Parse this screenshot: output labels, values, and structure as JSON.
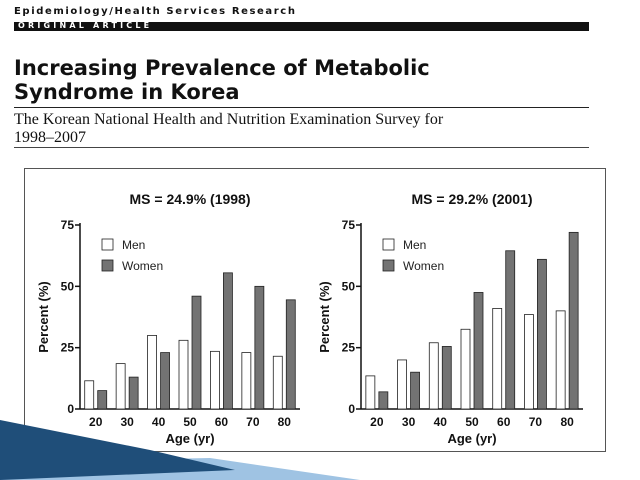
{
  "header": {
    "journal": "Epidemiology/Health Services Research",
    "section": "ORIGINAL ARTICLE",
    "title_line1": "Increasing Prevalence of Metabolic",
    "title_line2": "Syndrome in Korea",
    "subtitle_line1": "The Korean National Health and Nutrition Examination Survey for",
    "subtitle_line2": "1998–2007"
  },
  "colors": {
    "men_fill": "#ffffff",
    "women_fill": "#737373",
    "bar_stroke": "#222222",
    "swoosh_dark": "#1f4e79",
    "swoosh_light": "#9fc3e3"
  },
  "chart_data": [
    {
      "type": "bar",
      "title": "MS = 24.9%  (1998)",
      "xlabel": "Age (yr)",
      "ylabel": "Percent (%)",
      "ylim": [
        0,
        75
      ],
      "yticks": [
        "0",
        "25",
        "50",
        "75"
      ],
      "categories": [
        "20",
        "30",
        "40",
        "50",
        "60",
        "70",
        "80"
      ],
      "legend": "top-left",
      "series": [
        {
          "name": "Men",
          "values": [
            11.5,
            18.5,
            30,
            28,
            23.5,
            23,
            21.5
          ]
        },
        {
          "name": "Women",
          "values": [
            7.5,
            13,
            23,
            46,
            55.5,
            50,
            44.5
          ]
        }
      ]
    },
    {
      "type": "bar",
      "title": "MS = 29.2%  (2001)",
      "xlabel": "Age (yr)",
      "ylabel": "Percent (%)",
      "ylim": [
        0,
        75
      ],
      "yticks": [
        "0",
        "25",
        "50",
        "75"
      ],
      "categories": [
        "20",
        "30",
        "40",
        "50",
        "60",
        "70",
        "80"
      ],
      "legend": "top-left",
      "series": [
        {
          "name": "Men",
          "values": [
            13.5,
            20,
            27,
            32.5,
            41,
            38.5,
            40
          ]
        },
        {
          "name": "Women",
          "values": [
            7,
            15,
            25.5,
            47.5,
            64.5,
            61,
            72
          ]
        }
      ]
    }
  ]
}
